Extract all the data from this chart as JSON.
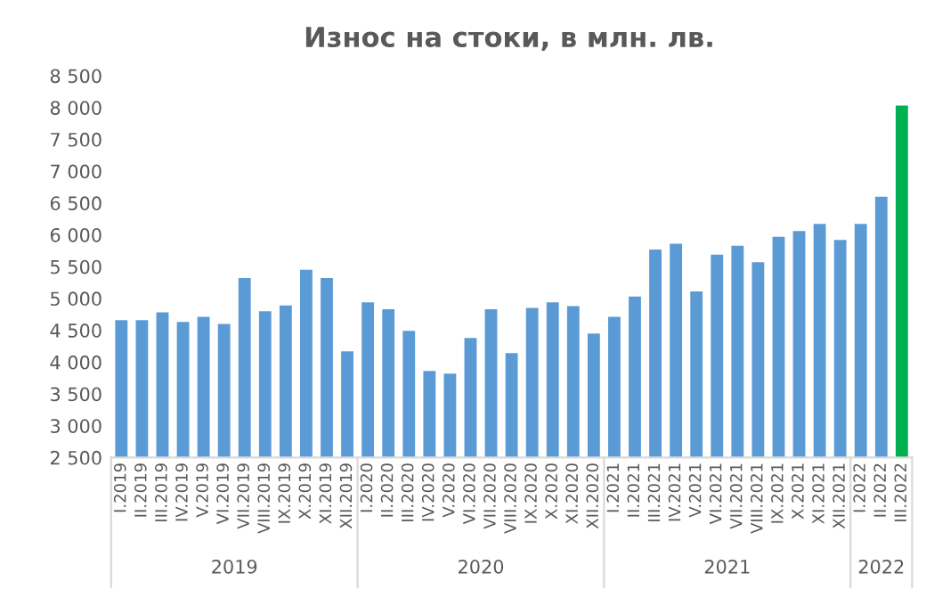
{
  "chart_data": {
    "type": "bar",
    "title": "Износ на стоки, в млн. лв.",
    "categories": [
      "I.2019",
      "II.2019",
      "III.2019",
      "IV.2019",
      "V.2019",
      "VI.2019",
      "VII.2019",
      "VIII.2019",
      "IX.2019",
      "X.2019",
      "XI.2019",
      "XII.2019",
      "I.2020",
      "II.2020",
      "III.2020",
      "IV.2020",
      "V.2020",
      "VI.2020",
      "VII.2020",
      "VIII.2020",
      "IX.2020",
      "X.2020",
      "XI.2020",
      "XII.2020",
      "I.2021",
      "II.2021",
      "III.2021",
      "IV.2021",
      "V.2021",
      "VI.2021",
      "VII.2021",
      "VIII.2021",
      "IX.2021",
      "X.2021",
      "XI.2021",
      "XII.2021",
      "I.2022",
      "II.2022",
      "III.2022"
    ],
    "values": [
      4660,
      4660,
      4780,
      4630,
      4710,
      4600,
      5320,
      4800,
      4890,
      5450,
      5320,
      4170,
      4940,
      4830,
      4490,
      3860,
      3820,
      4380,
      4830,
      4140,
      4850,
      4940,
      4880,
      4450,
      4710,
      5030,
      5770,
      5860,
      5110,
      5690,
      5830,
      5570,
      5970,
      6060,
      6170,
      5920,
      6170,
      6600,
      8030
    ],
    "colors": [
      "#5b9bd5",
      "#5b9bd5",
      "#5b9bd5",
      "#5b9bd5",
      "#5b9bd5",
      "#5b9bd5",
      "#5b9bd5",
      "#5b9bd5",
      "#5b9bd5",
      "#5b9bd5",
      "#5b9bd5",
      "#5b9bd5",
      "#5b9bd5",
      "#5b9bd5",
      "#5b9bd5",
      "#5b9bd5",
      "#5b9bd5",
      "#5b9bd5",
      "#5b9bd5",
      "#5b9bd5",
      "#5b9bd5",
      "#5b9bd5",
      "#5b9bd5",
      "#5b9bd5",
      "#5b9bd5",
      "#5b9bd5",
      "#5b9bd5",
      "#5b9bd5",
      "#5b9bd5",
      "#5b9bd5",
      "#5b9bd5",
      "#5b9bd5",
      "#5b9bd5",
      "#5b9bd5",
      "#5b9bd5",
      "#5b9bd5",
      "#5b9bd5",
      "#5b9bd5",
      "#00b050"
    ],
    "ylim": [
      2500,
      8500
    ],
    "yticks": [
      {
        "value": 2500,
        "label": "2 500"
      },
      {
        "value": 3000,
        "label": "3 000"
      },
      {
        "value": 3500,
        "label": "3 500"
      },
      {
        "value": 4000,
        "label": "4 000"
      },
      {
        "value": 4500,
        "label": "4 500"
      },
      {
        "value": 5000,
        "label": "5 000"
      },
      {
        "value": 5500,
        "label": "5 500"
      },
      {
        "value": 6000,
        "label": "6 000"
      },
      {
        "value": 6500,
        "label": "6 500"
      },
      {
        "value": 7000,
        "label": "7 000"
      },
      {
        "value": 7500,
        "label": "7 500"
      },
      {
        "value": 8000,
        "label": "8 000"
      },
      {
        "value": 8500,
        "label": "8 500"
      }
    ],
    "annotations": [
      "2019",
      "2020",
      "2021",
      "2022"
    ],
    "grid": false,
    "legend": false
  }
}
